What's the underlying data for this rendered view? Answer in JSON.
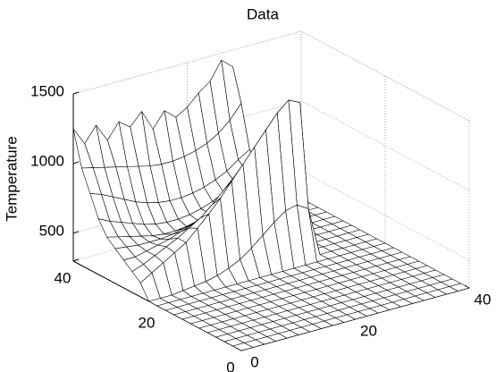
{
  "chart_data": {
    "type": "surface",
    "title": "Data",
    "zlabel": "Temperature",
    "x": [
      0,
      2,
      4,
      6,
      8,
      10,
      12,
      14,
      16,
      18,
      20,
      22,
      24,
      26,
      28,
      30,
      32,
      34,
      36,
      38,
      40
    ],
    "y": [
      0,
      2,
      4,
      6,
      8,
      10,
      12,
      14,
      16,
      18,
      20,
      22,
      24,
      26,
      28,
      30,
      32,
      34,
      36,
      38,
      40
    ],
    "z": [
      [
        300,
        300,
        300,
        300,
        300,
        300,
        300,
        300,
        300,
        300,
        300,
        300,
        300,
        300,
        300,
        300,
        300,
        300,
        300,
        300,
        300
      ],
      [
        300,
        300,
        300,
        300,
        300,
        300,
        300,
        300,
        300,
        300,
        300,
        300,
        300,
        300,
        300,
        300,
        300,
        300,
        300,
        300,
        300
      ],
      [
        300,
        300,
        300,
        300,
        300,
        300,
        300,
        300,
        300,
        300,
        300,
        300,
        300,
        300,
        300,
        300,
        300,
        300,
        300,
        300,
        300
      ],
      [
        300,
        300,
        300,
        300,
        300,
        300,
        300,
        300,
        300,
        300,
        300,
        300,
        300,
        300,
        300,
        300,
        300,
        300,
        300,
        300,
        300
      ],
      [
        300,
        300,
        300,
        300,
        300,
        300,
        300,
        300,
        300,
        300,
        300,
        300,
        300,
        300,
        300,
        300,
        300,
        300,
        300,
        300,
        300
      ],
      [
        300,
        300,
        300,
        300,
        300,
        300,
        300,
        300,
        300,
        300,
        300,
        300,
        300,
        300,
        300,
        300,
        300,
        300,
        300,
        300,
        300
      ],
      [
        300,
        300,
        300,
        300,
        300,
        300,
        300,
        300,
        300,
        300,
        300,
        300,
        300,
        300,
        300,
        300,
        300,
        300,
        300,
        300,
        300
      ],
      [
        300,
        300,
        300,
        300,
        300,
        300,
        300,
        300,
        300,
        300,
        300,
        300,
        300,
        300,
        300,
        300,
        300,
        300,
        300,
        300,
        300
      ],
      [
        300,
        300,
        300,
        300,
        300,
        300,
        300,
        300,
        300,
        300,
        300,
        300,
        300,
        300,
        300,
        300,
        300,
        300,
        300,
        300,
        300
      ],
      [
        300,
        300,
        300,
        300,
        300,
        300,
        300,
        300,
        300,
        300,
        300,
        300,
        300,
        300,
        300,
        300,
        300,
        300,
        300,
        300,
        300
      ],
      [
        300,
        300,
        300,
        300,
        300,
        300,
        300,
        300,
        300,
        300,
        300,
        300,
        300,
        300,
        300,
        300,
        300,
        300,
        300,
        300,
        300
      ],
      [
        300,
        300,
        300,
        310,
        320,
        330,
        350,
        380,
        420,
        480,
        550,
        620,
        680,
        700,
        650,
        300,
        300,
        300,
        300,
        300,
        300
      ],
      [
        400,
        450,
        500,
        550,
        600,
        680,
        760,
        850,
        950,
        1050,
        1150,
        1250,
        1350,
        1420,
        1380,
        300,
        300,
        300,
        300,
        300,
        300
      ],
      [
        450,
        480,
        520,
        560,
        600,
        650,
        700,
        770,
        850,
        930,
        1020,
        1120,
        1220,
        1300,
        1250,
        300,
        300,
        300,
        300,
        300,
        300
      ],
      [
        500,
        500,
        520,
        540,
        560,
        590,
        620,
        660,
        710,
        770,
        840,
        920,
        1010,
        1100,
        1080,
        300,
        300,
        300,
        300,
        300,
        300
      ],
      [
        550,
        540,
        530,
        530,
        530,
        540,
        560,
        580,
        610,
        650,
        700,
        760,
        830,
        910,
        900,
        300,
        300,
        300,
        300,
        300,
        300
      ],
      [
        600,
        580,
        560,
        540,
        520,
        510,
        510,
        520,
        540,
        570,
        610,
        660,
        720,
        790,
        800,
        300,
        300,
        300,
        300,
        300,
        300
      ],
      [
        700,
        660,
        630,
        600,
        570,
        550,
        540,
        540,
        550,
        570,
        600,
        640,
        690,
        750,
        780,
        300,
        300,
        300,
        300,
        300,
        300
      ],
      [
        850,
        820,
        780,
        740,
        700,
        670,
        650,
        640,
        640,
        650,
        670,
        700,
        740,
        800,
        850,
        300,
        300,
        300,
        300,
        300,
        300
      ],
      [
        1000,
        980,
        960,
        940,
        920,
        900,
        880,
        870,
        870,
        880,
        900,
        930,
        980,
        1050,
        1150,
        300,
        300,
        300,
        300,
        300,
        300
      ],
      [
        1250,
        1120,
        1230,
        1100,
        1210,
        1150,
        1240,
        1090,
        1200,
        1130,
        1180,
        1260,
        1320,
        1450,
        1380,
        300,
        300,
        300,
        300,
        300,
        300
      ]
    ],
    "xlim": [
      0,
      40
    ],
    "ylim": [
      0,
      40
    ],
    "zlim": [
      300,
      1500
    ],
    "xticks": [
      0,
      20,
      40
    ],
    "yticks": [
      0,
      20,
      40
    ],
    "zticks": [
      500,
      1000,
      1500
    ],
    "grid": true,
    "color": "#000000",
    "face_color": "#ffffff"
  }
}
